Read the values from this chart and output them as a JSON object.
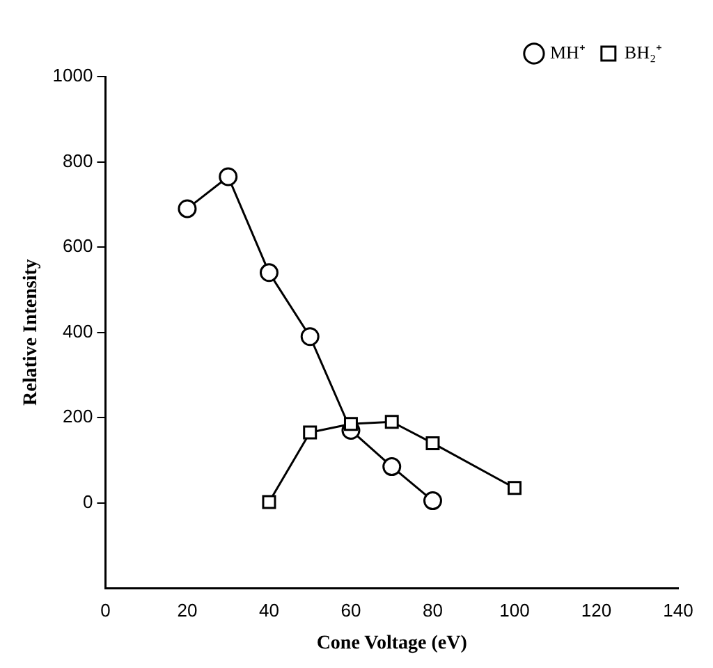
{
  "chart_data": {
    "type": "line",
    "xlabel": "Cone Voltage (eV)",
    "ylabel": "Relative Intensity",
    "xlim": [
      0,
      140
    ],
    "xticks": [
      0,
      20,
      40,
      60,
      80,
      100,
      120,
      140
    ],
    "ylim": [
      -200,
      1000
    ],
    "yticks": [
      0,
      200,
      400,
      600,
      800,
      1000
    ],
    "grid": false,
    "legend": "top right",
    "series": [
      {
        "name": "MH⁺",
        "color": "#000000",
        "marker": "circle",
        "x": [
          20,
          30,
          40,
          50,
          60,
          70,
          80
        ],
        "values": [
          690,
          765,
          540,
          390,
          170,
          85,
          5
        ]
      },
      {
        "name": "BH₂⁺",
        "color": "#000000",
        "marker": "square",
        "x": [
          40,
          50,
          60,
          70,
          80,
          100
        ],
        "values": [
          2,
          165,
          185,
          190,
          140,
          35
        ]
      }
    ]
  }
}
